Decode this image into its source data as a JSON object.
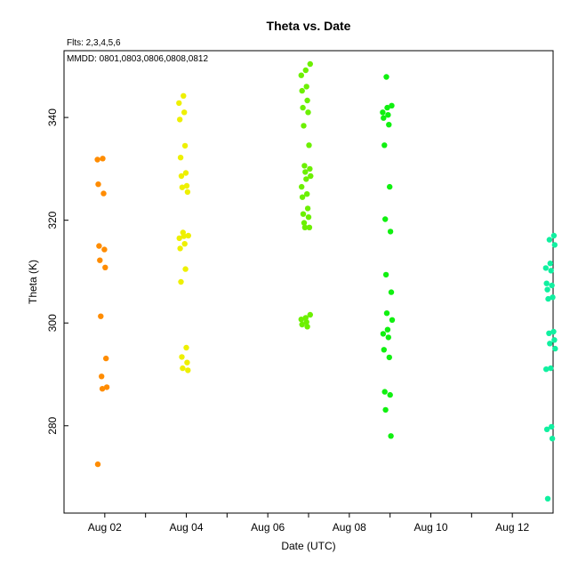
{
  "chart_data": {
    "type": "scatter",
    "title": "Theta  vs. Date",
    "subtitle": "Flts: 2,3,4,5,6",
    "annotation": "MMDD: 0801,0803,0806,0808,0812",
    "xlabel": "Date (UTC)",
    "ylabel": "Theta (K)",
    "xlim": [
      "2000-08-01",
      "2000-08-13"
    ],
    "ylim": [
      263,
      353
    ],
    "x_ticks": [
      "Aug 02",
      "Aug 04",
      "Aug 06",
      "Aug 08",
      "Aug 10",
      "Aug 12"
    ],
    "y_ticks": [
      280,
      300,
      320,
      340
    ],
    "grid": false,
    "series": [
      {
        "color": "#ff8c00",
        "x_date": "2000-08-01",
        "y": [
          331.8,
          332.0,
          327.0,
          325.2,
          315.0,
          314.3,
          312.2,
          310.8,
          301.3,
          293.1,
          289.6,
          287.5,
          287.2,
          272.5
        ]
      },
      {
        "color": "#eef000",
        "x_date": "2000-08-03",
        "y": [
          344.2,
          342.8,
          341.0,
          339.6,
          334.5,
          332.2,
          329.2,
          328.6,
          326.7,
          326.4,
          325.5,
          317.6,
          317.0,
          316.9,
          316.5,
          315.4,
          314.5,
          310.5,
          308.0,
          295.2,
          293.4,
          292.3,
          291.2,
          290.8
        ]
      },
      {
        "color": "#6cf000",
        "x_date": "2000-08-06",
        "y": [
          350.4,
          349.2,
          348.2,
          346.0,
          345.2,
          343.3,
          341.9,
          341.0,
          338.4,
          334.6,
          330.6,
          330.0,
          329.4,
          328.6,
          328.0,
          326.5,
          325.1,
          324.5,
          322.3,
          321.2,
          320.6,
          319.5,
          318.6,
          318.6,
          301.6,
          301.0,
          300.7,
          300.2,
          299.7,
          299.3
        ]
      },
      {
        "color": "#10f010",
        "x_date": "2000-08-08",
        "y": [
          347.9,
          342.3,
          341.9,
          341.0,
          340.5,
          339.9,
          338.6,
          334.6,
          326.5,
          320.2,
          317.8,
          309.4,
          306.0,
          301.9,
          300.6,
          298.7,
          297.9,
          297.2,
          294.8,
          293.3,
          286.6,
          286.0,
          283.1,
          278.0
        ]
      },
      {
        "color": "#10f0a0",
        "x_date": "2000-08-12",
        "y": [
          317.0,
          316.2,
          315.2,
          311.6,
          310.7,
          310.2,
          307.7,
          307.3,
          306.5,
          305.0,
          304.7,
          298.3,
          298.0,
          296.7,
          296.0,
          295.0,
          291.2,
          291.0,
          279.8,
          279.3,
          277.5,
          265.8
        ]
      }
    ]
  }
}
